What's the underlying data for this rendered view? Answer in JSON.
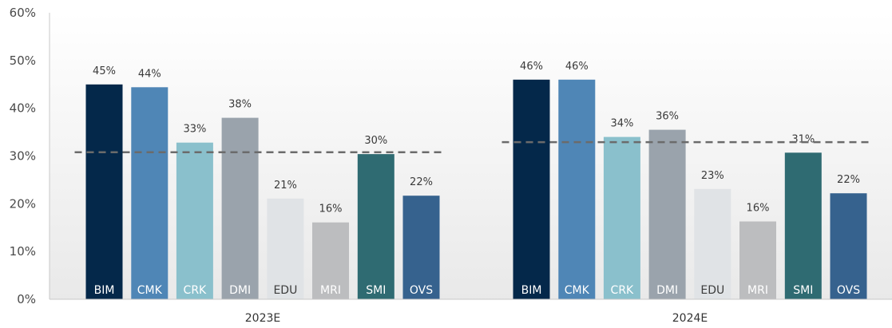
{
  "chart_data": {
    "type": "bar",
    "groups": [
      "2023E",
      "2024E"
    ],
    "series": [
      {
        "name": "BIM",
        "values": [
          45,
          46
        ],
        "labels": [
          "45%",
          "46%"
        ],
        "color": "#04284a",
        "label_color": "#ffffff"
      },
      {
        "name": "CMK",
        "values": [
          44.4,
          46
        ],
        "labels": [
          "44%",
          "46%"
        ],
        "color": "#4f86b6",
        "label_color": "#ffffff"
      },
      {
        "name": "CRK",
        "values": [
          32.8,
          34
        ],
        "labels": [
          "33%",
          "34%"
        ],
        "color": "#8ac0cc",
        "label_color": "#ffffff"
      },
      {
        "name": "DMI",
        "values": [
          38,
          35.5
        ],
        "labels": [
          "38%",
          "36%"
        ],
        "color": "#9aa3ac",
        "label_color": "#ffffff"
      },
      {
        "name": "EDU",
        "values": [
          21.1,
          23.1
        ],
        "labels": [
          "21%",
          "23%"
        ],
        "color": "#e0e3e6",
        "label_color": "#3d3d3d"
      },
      {
        "name": "MRI",
        "values": [
          16.1,
          16.3
        ],
        "labels": [
          "16%",
          "16%"
        ],
        "color": "#bcbdbf",
        "label_color": "#ffffff"
      },
      {
        "name": "SMI",
        "values": [
          30.4,
          30.7
        ],
        "labels": [
          "30%",
          "31%"
        ],
        "color": "#2f6b72",
        "label_color": "#ffffff"
      },
      {
        "name": "OVS",
        "values": [
          21.7,
          22.2
        ],
        "labels": [
          "22%",
          "22%"
        ],
        "color": "#36628e",
        "label_color": "#ffffff"
      }
    ],
    "averages": [
      30.8,
      32.9
    ],
    "ylim": [
      0,
      60
    ],
    "yticks": [
      "0%",
      "10%",
      "20%",
      "30%",
      "40%",
      "50%",
      "60%"
    ],
    "average_line_color": "#6b6b6b",
    "background_gradient": [
      "#ffffff",
      "#e9e9e9"
    ],
    "grid": false
  }
}
